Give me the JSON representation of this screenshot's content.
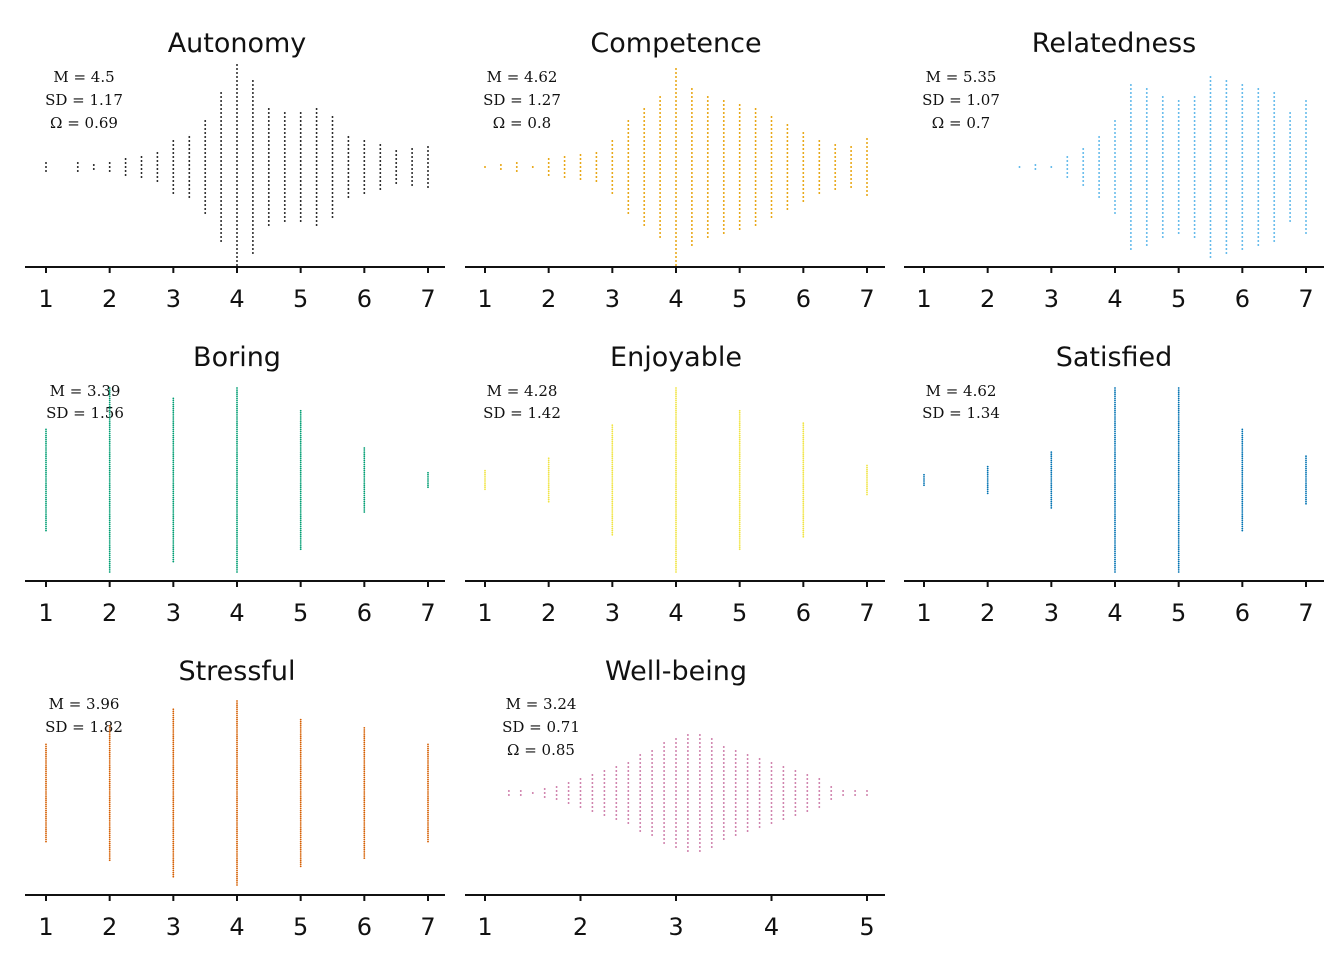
{
  "figure": {
    "panels": [
      {
        "title": "Autonomy",
        "stats": [
          "M = 4.5",
          "SD = 1.17",
          "Ω = 0.69"
        ],
        "color": "#1a1a1a",
        "ticks": [
          "1",
          "2",
          "3",
          "4",
          "5",
          "6",
          "7"
        ]
      },
      {
        "title": "Competence",
        "stats": [
          "M = 4.62",
          "SD = 1.27",
          "Ω = 0.8"
        ],
        "color": "#e69f00",
        "ticks": [
          "1",
          "2",
          "3",
          "4",
          "5",
          "6",
          "7"
        ]
      },
      {
        "title": "Relatedness",
        "stats": [
          "M = 5.35",
          "SD = 1.07",
          "Ω = 0.7"
        ],
        "color": "#56b4e9",
        "ticks": [
          "1",
          "2",
          "3",
          "4",
          "5",
          "6",
          "7"
        ]
      },
      {
        "title": "Boring",
        "stats": [
          "M = 3.39",
          "SD = 1.56"
        ],
        "color": "#009e73",
        "ticks": [
          "1",
          "2",
          "3",
          "4",
          "5",
          "6",
          "7"
        ]
      },
      {
        "title": "Enjoyable",
        "stats": [
          "M = 4.28",
          "SD = 1.42"
        ],
        "color": "#f0e442",
        "ticks": [
          "1",
          "2",
          "3",
          "4",
          "5",
          "6",
          "7"
        ]
      },
      {
        "title": "Satisfied",
        "stats": [
          "M = 4.62",
          "SD = 1.34"
        ],
        "color": "#0072b2",
        "ticks": [
          "1",
          "2",
          "3",
          "4",
          "5",
          "6",
          "7"
        ]
      },
      {
        "title": "Stressful",
        "stats": [
          "M = 3.96",
          "SD = 1.82"
        ],
        "color": "#d55e00",
        "ticks": [
          "1",
          "2",
          "3",
          "4",
          "5",
          "6",
          "7"
        ]
      },
      {
        "title": "Well-being",
        "stats": [
          "M = 3.24",
          "SD = 0.71",
          "Ω = 0.85"
        ],
        "color": "#cc79a7",
        "ticks": [
          "1",
          "2",
          "3",
          "4",
          "5"
        ]
      }
    ]
  },
  "chart_data": [
    {
      "type": "scatter",
      "title": "Autonomy",
      "xlim": [
        1,
        7
      ],
      "columns": [
        {
          "x": 1.0,
          "count": 3
        },
        {
          "x": 1.5,
          "count": 3
        },
        {
          "x": 1.75,
          "count": 2
        },
        {
          "x": 2.0,
          "count": 3
        },
        {
          "x": 2.25,
          "count": 5
        },
        {
          "x": 2.5,
          "count": 6
        },
        {
          "x": 2.75,
          "count": 8
        },
        {
          "x": 3.0,
          "count": 14
        },
        {
          "x": 3.25,
          "count": 16
        },
        {
          "x": 3.5,
          "count": 24
        },
        {
          "x": 3.75,
          "count": 38
        },
        {
          "x": 4.0,
          "count": 52
        },
        {
          "x": 4.25,
          "count": 44
        },
        {
          "x": 4.5,
          "count": 30
        },
        {
          "x": 4.75,
          "count": 28
        },
        {
          "x": 5.0,
          "count": 28
        },
        {
          "x": 5.25,
          "count": 30
        },
        {
          "x": 5.5,
          "count": 26
        },
        {
          "x": 5.75,
          "count": 16
        },
        {
          "x": 6.0,
          "count": 14
        },
        {
          "x": 6.25,
          "count": 12
        },
        {
          "x": 6.5,
          "count": 9
        },
        {
          "x": 6.75,
          "count": 10
        },
        {
          "x": 7.0,
          "count": 11
        }
      ]
    },
    {
      "type": "scatter",
      "title": "Competence",
      "xlim": [
        1,
        7
      ],
      "columns": [
        {
          "x": 1.0,
          "count": 1
        },
        {
          "x": 1.25,
          "count": 2
        },
        {
          "x": 1.5,
          "count": 3
        },
        {
          "x": 1.75,
          "count": 1
        },
        {
          "x": 2.0,
          "count": 5
        },
        {
          "x": 2.25,
          "count": 6
        },
        {
          "x": 2.5,
          "count": 7
        },
        {
          "x": 2.75,
          "count": 8
        },
        {
          "x": 3.0,
          "count": 14
        },
        {
          "x": 3.25,
          "count": 24
        },
        {
          "x": 3.5,
          "count": 30
        },
        {
          "x": 3.75,
          "count": 36
        },
        {
          "x": 4.0,
          "count": 50
        },
        {
          "x": 4.25,
          "count": 40
        },
        {
          "x": 4.5,
          "count": 36
        },
        {
          "x": 4.75,
          "count": 34
        },
        {
          "x": 5.0,
          "count": 32
        },
        {
          "x": 5.25,
          "count": 30
        },
        {
          "x": 5.5,
          "count": 26
        },
        {
          "x": 5.75,
          "count": 22
        },
        {
          "x": 6.0,
          "count": 18
        },
        {
          "x": 6.25,
          "count": 14
        },
        {
          "x": 6.5,
          "count": 12
        },
        {
          "x": 6.75,
          "count": 11
        },
        {
          "x": 7.0,
          "count": 15
        }
      ]
    },
    {
      "type": "scatter",
      "title": "Relatedness",
      "xlim": [
        1,
        7
      ],
      "columns": [
        {
          "x": 2.5,
          "count": 1
        },
        {
          "x": 2.75,
          "count": 2
        },
        {
          "x": 3.0,
          "count": 1
        },
        {
          "x": 3.25,
          "count": 6
        },
        {
          "x": 3.5,
          "count": 10
        },
        {
          "x": 3.75,
          "count": 16
        },
        {
          "x": 4.0,
          "count": 24
        },
        {
          "x": 4.25,
          "count": 42
        },
        {
          "x": 4.5,
          "count": 40
        },
        {
          "x": 4.75,
          "count": 36
        },
        {
          "x": 5.0,
          "count": 34
        },
        {
          "x": 5.25,
          "count": 36
        },
        {
          "x": 5.5,
          "count": 46
        },
        {
          "x": 5.75,
          "count": 44
        },
        {
          "x": 6.0,
          "count": 42
        },
        {
          "x": 6.25,
          "count": 40
        },
        {
          "x": 6.5,
          "count": 38
        },
        {
          "x": 6.75,
          "count": 28
        },
        {
          "x": 7.0,
          "count": 34
        }
      ]
    },
    {
      "type": "scatter",
      "title": "Boring",
      "xlim": [
        1,
        7
      ],
      "columns": [
        {
          "x": 1,
          "count": 50
        },
        {
          "x": 2,
          "count": 90
        },
        {
          "x": 3,
          "count": 80
        },
        {
          "x": 4,
          "count": 90
        },
        {
          "x": 5,
          "count": 68
        },
        {
          "x": 6,
          "count": 32
        },
        {
          "x": 7,
          "count": 8
        }
      ]
    },
    {
      "type": "scatter",
      "title": "Enjoyable",
      "xlim": [
        1,
        7
      ],
      "columns": [
        {
          "x": 1,
          "count": 10
        },
        {
          "x": 2,
          "count": 22
        },
        {
          "x": 3,
          "count": 54
        },
        {
          "x": 4,
          "count": 90
        },
        {
          "x": 5,
          "count": 68
        },
        {
          "x": 6,
          "count": 56
        },
        {
          "x": 7,
          "count": 15
        }
      ]
    },
    {
      "type": "scatter",
      "title": "Satisfied",
      "xlim": [
        1,
        7
      ],
      "columns": [
        {
          "x": 1,
          "count": 6
        },
        {
          "x": 2,
          "count": 14
        },
        {
          "x": 3,
          "count": 28
        },
        {
          "x": 4,
          "count": 90
        },
        {
          "x": 5,
          "count": 90
        },
        {
          "x": 6,
          "count": 50
        },
        {
          "x": 7,
          "count": 24
        }
      ]
    },
    {
      "type": "scatter",
      "title": "Stressful",
      "xlim": [
        1,
        7
      ],
      "columns": [
        {
          "x": 1,
          "count": 48
        },
        {
          "x": 2,
          "count": 66
        },
        {
          "x": 3,
          "count": 82
        },
        {
          "x": 4,
          "count": 90
        },
        {
          "x": 5,
          "count": 72
        },
        {
          "x": 6,
          "count": 64
        },
        {
          "x": 7,
          "count": 48
        }
      ]
    },
    {
      "type": "scatter",
      "title": "Well-being",
      "xlim": [
        1,
        5
      ],
      "columns": [
        {
          "x": 1.25,
          "count": 2
        },
        {
          "x": 1.375,
          "count": 2
        },
        {
          "x": 1.5,
          "count": 1
        },
        {
          "x": 1.625,
          "count": 3
        },
        {
          "x": 1.75,
          "count": 4
        },
        {
          "x": 1.875,
          "count": 6
        },
        {
          "x": 2.0,
          "count": 8
        },
        {
          "x": 2.125,
          "count": 10
        },
        {
          "x": 2.25,
          "count": 12
        },
        {
          "x": 2.375,
          "count": 14
        },
        {
          "x": 2.5,
          "count": 16
        },
        {
          "x": 2.625,
          "count": 20
        },
        {
          "x": 2.75,
          "count": 22
        },
        {
          "x": 2.875,
          "count": 26
        },
        {
          "x": 3.0,
          "count": 28
        },
        {
          "x": 3.125,
          "count": 30
        },
        {
          "x": 3.25,
          "count": 30
        },
        {
          "x": 3.375,
          "count": 28
        },
        {
          "x": 3.5,
          "count": 24
        },
        {
          "x": 3.625,
          "count": 22
        },
        {
          "x": 3.75,
          "count": 20
        },
        {
          "x": 3.875,
          "count": 18
        },
        {
          "x": 4.0,
          "count": 16
        },
        {
          "x": 4.125,
          "count": 14
        },
        {
          "x": 4.25,
          "count": 12
        },
        {
          "x": 4.375,
          "count": 10
        },
        {
          "x": 4.5,
          "count": 8
        },
        {
          "x": 4.625,
          "count": 4
        },
        {
          "x": 4.75,
          "count": 2
        },
        {
          "x": 4.875,
          "count": 2
        },
        {
          "x": 5.0,
          "count": 2
        }
      ]
    }
  ]
}
